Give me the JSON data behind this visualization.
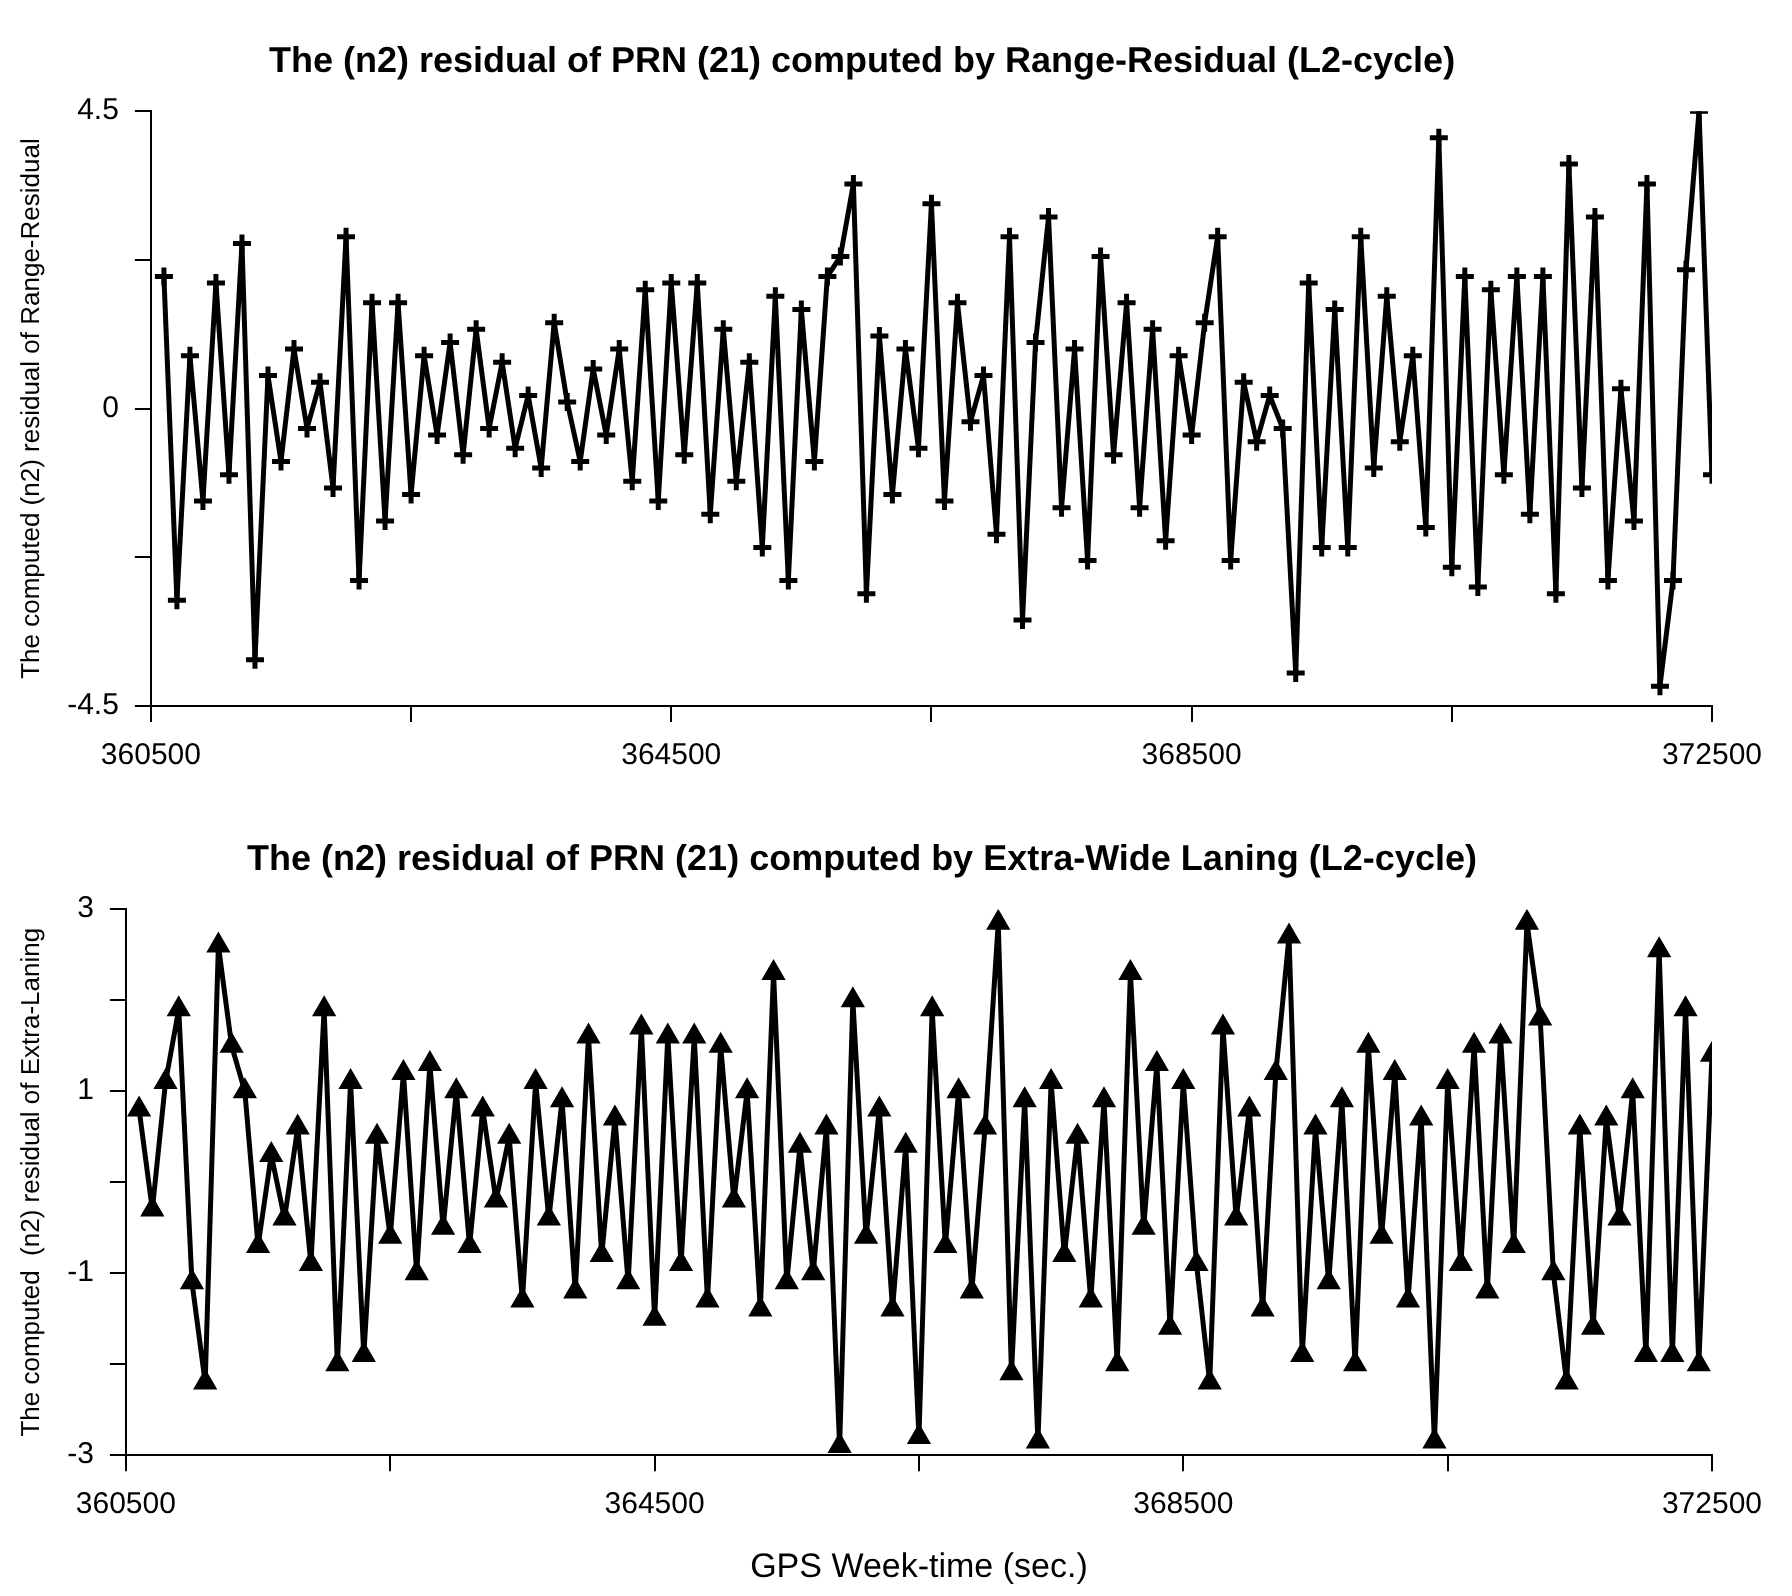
{
  "chart_data": [
    {
      "type": "line",
      "title": "The (n2) residual of PRN (21) computed by Range-Residual (L2-cycle)",
      "ylabel": "The computed (n2) residual of Range-Residual",
      "x": [
        360600,
        360700,
        360800,
        360900,
        361000,
        361100,
        361200,
        361300,
        361400,
        361500,
        361600,
        361700,
        361800,
        361900,
        362000,
        362100,
        362200,
        362300,
        362400,
        362500,
        362600,
        362700,
        362800,
        362900,
        363000,
        363100,
        363200,
        363300,
        363400,
        363500,
        363600,
        363700,
        363800,
        363900,
        364000,
        364100,
        364200,
        364300,
        364400,
        364500,
        364600,
        364700,
        364800,
        364900,
        365000,
        365100,
        365200,
        365300,
        365400,
        365500,
        365600,
        365700,
        365800,
        365900,
        366000,
        366100,
        366200,
        366300,
        366400,
        366500,
        366600,
        366700,
        366800,
        366900,
        367000,
        367100,
        367200,
        367300,
        367400,
        367500,
        367600,
        367700,
        367800,
        367900,
        368000,
        368100,
        368200,
        368300,
        368400,
        368500,
        368600,
        368700,
        368800,
        368900,
        369000,
        369100,
        369200,
        369300,
        369400,
        369500,
        369600,
        369700,
        369800,
        369900,
        370000,
        370100,
        370200,
        370300,
        370400,
        370500,
        370600,
        370700,
        370800,
        370900,
        371000,
        371100,
        371200,
        371300,
        371400,
        371500,
        371600,
        371700,
        371800,
        371900,
        372000,
        372100,
        372200,
        372300,
        372400,
        372500
      ],
      "series": [
        {
          "color": "#000000",
          "values": [
            2.0,
            -2.9,
            0.8,
            -1.4,
            1.9,
            -1.0,
            2.5,
            -3.8,
            0.5,
            -0.8,
            0.9,
            -0.3,
            0.4,
            -1.2,
            2.6,
            -2.6,
            1.6,
            -1.7,
            1.6,
            -1.3,
            0.8,
            -0.4,
            1.0,
            -0.7,
            1.2,
            -0.3,
            0.7,
            -0.6,
            0.2,
            -0.9,
            1.3,
            0.1,
            -0.8,
            0.6,
            -0.4,
            0.9,
            -1.1,
            1.8,
            -1.4,
            1.9,
            -0.7,
            1.9,
            -1.6,
            1.2,
            -1.1,
            0.7,
            -2.1,
            1.7,
            -2.6,
            1.5,
            -0.8,
            2.0,
            2.3,
            3.4,
            -2.8,
            1.1,
            -1.3,
            0.9,
            -0.6,
            3.1,
            -1.4,
            1.6,
            -0.2,
            0.5,
            -1.9,
            2.6,
            -3.2,
            1.0,
            2.9,
            -1.5,
            0.9,
            -2.3,
            2.3,
            -0.7,
            1.6,
            -1.5,
            1.2,
            -2.0,
            0.8,
            -0.4,
            1.3,
            2.6,
            -2.3,
            0.4,
            -0.5,
            0.2,
            -0.3,
            -4.0,
            1.9,
            -2.1,
            1.5,
            -2.1,
            2.6,
            -0.9,
            1.7,
            -0.5,
            0.8,
            -1.8,
            4.1,
            -2.4,
            2.0,
            -2.7,
            1.8,
            -1.0,
            2.0,
            -1.6,
            2.0,
            -2.8,
            3.7,
            -1.2,
            2.9,
            -2.6,
            0.3,
            -1.7,
            3.4,
            -4.2,
            -2.6,
            2.1,
            4.5,
            -1.0
          ]
        }
      ],
      "xlim": [
        360500,
        372500
      ],
      "xticks": [
        360500,
        {
          "value": 362500,
          "label": null
        },
        364500,
        {
          "value": 366500,
          "label": null
        },
        368500,
        {
          "value": 370500,
          "label": null
        },
        372500
      ],
      "ylim": [
        -4.5,
        4.5
      ],
      "yticks": [
        -4.5,
        {
          "value": -2.25,
          "label": null
        },
        0,
        {
          "value": 2.25,
          "label": null
        },
        4.5
      ],
      "grid": false,
      "legend": false,
      "marker": "cross",
      "line_style": "solid"
    },
    {
      "type": "line",
      "title": "The (n2) residual of PRN (21) computed by Extra-Wide Laning (L2-cycle)",
      "ylabel": "The computed  (n2) residual of Extra-Laning",
      "xlabel": "GPS Week-time (sec.)",
      "x": [
        360600,
        360700,
        360800,
        360900,
        361000,
        361100,
        361200,
        361300,
        361400,
        361500,
        361600,
        361700,
        361800,
        361900,
        362000,
        362100,
        362200,
        362300,
        362400,
        362500,
        362600,
        362700,
        362800,
        362900,
        363000,
        363100,
        363200,
        363300,
        363400,
        363500,
        363600,
        363700,
        363800,
        363900,
        364000,
        364100,
        364200,
        364300,
        364400,
        364500,
        364600,
        364700,
        364800,
        364900,
        365000,
        365100,
        365200,
        365300,
        365400,
        365500,
        365600,
        365700,
        365800,
        365900,
        366000,
        366100,
        366200,
        366300,
        366400,
        366500,
        366600,
        366700,
        366800,
        366900,
        367000,
        367100,
        367200,
        367300,
        367400,
        367500,
        367600,
        367700,
        367800,
        367900,
        368000,
        368100,
        368200,
        368300,
        368400,
        368500,
        368600,
        368700,
        368800,
        368900,
        369000,
        369100,
        369200,
        369300,
        369400,
        369500,
        369600,
        369700,
        369800,
        369900,
        370000,
        370100,
        370200,
        370300,
        370400,
        370500,
        370600,
        370700,
        370800,
        370900,
        371000,
        371100,
        371200,
        371300,
        371400,
        371500,
        371600,
        371700,
        371800,
        371900,
        372000,
        372100,
        372200,
        372300,
        372400,
        372500
      ],
      "series": [
        {
          "color": "#000000",
          "values": [
            0.8,
            -0.3,
            1.1,
            1.9,
            -1.1,
            -2.2,
            2.6,
            1.5,
            1.0,
            -0.7,
            0.3,
            -0.4,
            0.6,
            -0.9,
            1.9,
            -2.0,
            1.1,
            -1.9,
            0.5,
            -0.6,
            1.2,
            -1.0,
            1.3,
            -0.5,
            1.0,
            -0.7,
            0.8,
            -0.2,
            0.5,
            -1.3,
            1.1,
            -0.4,
            0.9,
            -1.2,
            1.6,
            -0.8,
            0.7,
            -1.1,
            1.7,
            -1.5,
            1.6,
            -0.9,
            1.6,
            -1.3,
            1.5,
            -0.2,
            1.0,
            -1.4,
            2.3,
            -1.1,
            0.4,
            -1.0,
            0.6,
            -2.9,
            2.0,
            -0.6,
            0.8,
            -1.4,
            0.4,
            -2.8,
            1.9,
            -0.7,
            1.0,
            -1.2,
            0.6,
            2.85,
            -2.1,
            0.9,
            -2.85,
            1.1,
            -0.8,
            0.5,
            -1.3,
            0.9,
            -2.0,
            2.3,
            -0.5,
            1.3,
            -1.6,
            1.1,
            -0.9,
            -2.2,
            1.7,
            -0.4,
            0.8,
            -1.4,
            1.2,
            2.7,
            -1.9,
            0.6,
            -1.1,
            0.9,
            -2.0,
            1.5,
            -0.6,
            1.2,
            -1.3,
            0.7,
            -2.85,
            1.1,
            -0.9,
            1.5,
            -1.2,
            1.6,
            -0.7,
            2.85,
            1.8,
            -1.0,
            -2.2,
            0.6,
            -1.6,
            0.7,
            -0.4,
            1.0,
            -1.9,
            2.55,
            -1.9,
            1.9,
            -2.0,
            1.4
          ]
        }
      ],
      "xlim": [
        360500,
        372500
      ],
      "xticks": [
        360500,
        {
          "value": 362500,
          "label": null
        },
        364500,
        {
          "value": 366500,
          "label": null
        },
        368500,
        {
          "value": 370500,
          "label": null
        },
        372500
      ],
      "ylim": [
        -3,
        3
      ],
      "yticks": [
        -3,
        {
          "value": -2,
          "label": null
        },
        -1,
        {
          "value": 0,
          "label": null
        },
        1,
        {
          "value": 2,
          "label": null
        },
        3
      ],
      "grid": false,
      "legend": false,
      "marker": "triangle",
      "line_style": "solid"
    }
  ]
}
